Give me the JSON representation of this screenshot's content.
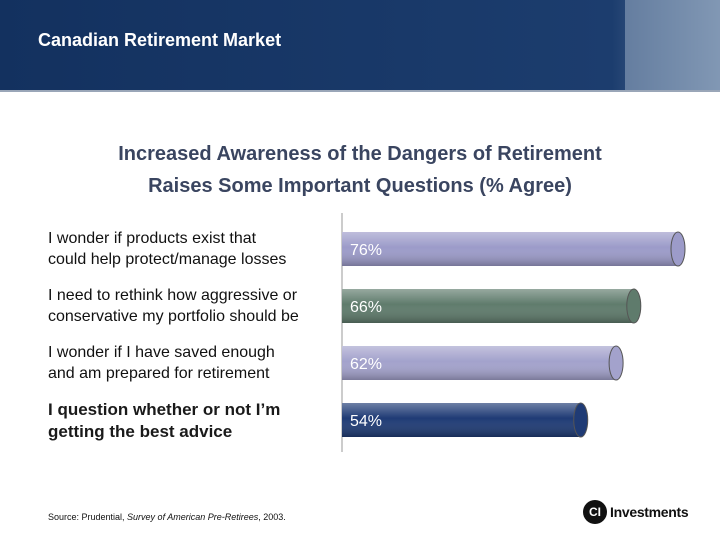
{
  "header": {
    "title": "Canadian Retirement Market"
  },
  "chart_data": {
    "type": "bar",
    "orientation": "horizontal",
    "title": [
      "Increased Awareness of the Dangers of Retirement",
      "Raises Some Important Questions (% Agree)"
    ],
    "categories": [
      "I wonder if products exist that\ncould help protect/manage losses",
      "I need to rethink how aggressive or\nconservative my portfolio should be",
      "I wonder if I have saved enough\nand am prepared for retirement",
      "I question whether or not I’m\ngetting the best advice"
    ],
    "values": [
      76,
      66,
      62,
      54
    ],
    "value_labels": [
      "76%",
      "66%",
      "62%",
      "54%"
    ],
    "colors": [
      "#9c9bc9",
      "#5f7b6c",
      "#a3a2cc",
      "#1f3b75"
    ]
  },
  "source": {
    "prefix": "Source: Prudential, ",
    "italic": "Survey of American Pre-Retirees",
    "suffix": ", 2003."
  },
  "logo": {
    "mark": "CI",
    "text": "Investments"
  }
}
